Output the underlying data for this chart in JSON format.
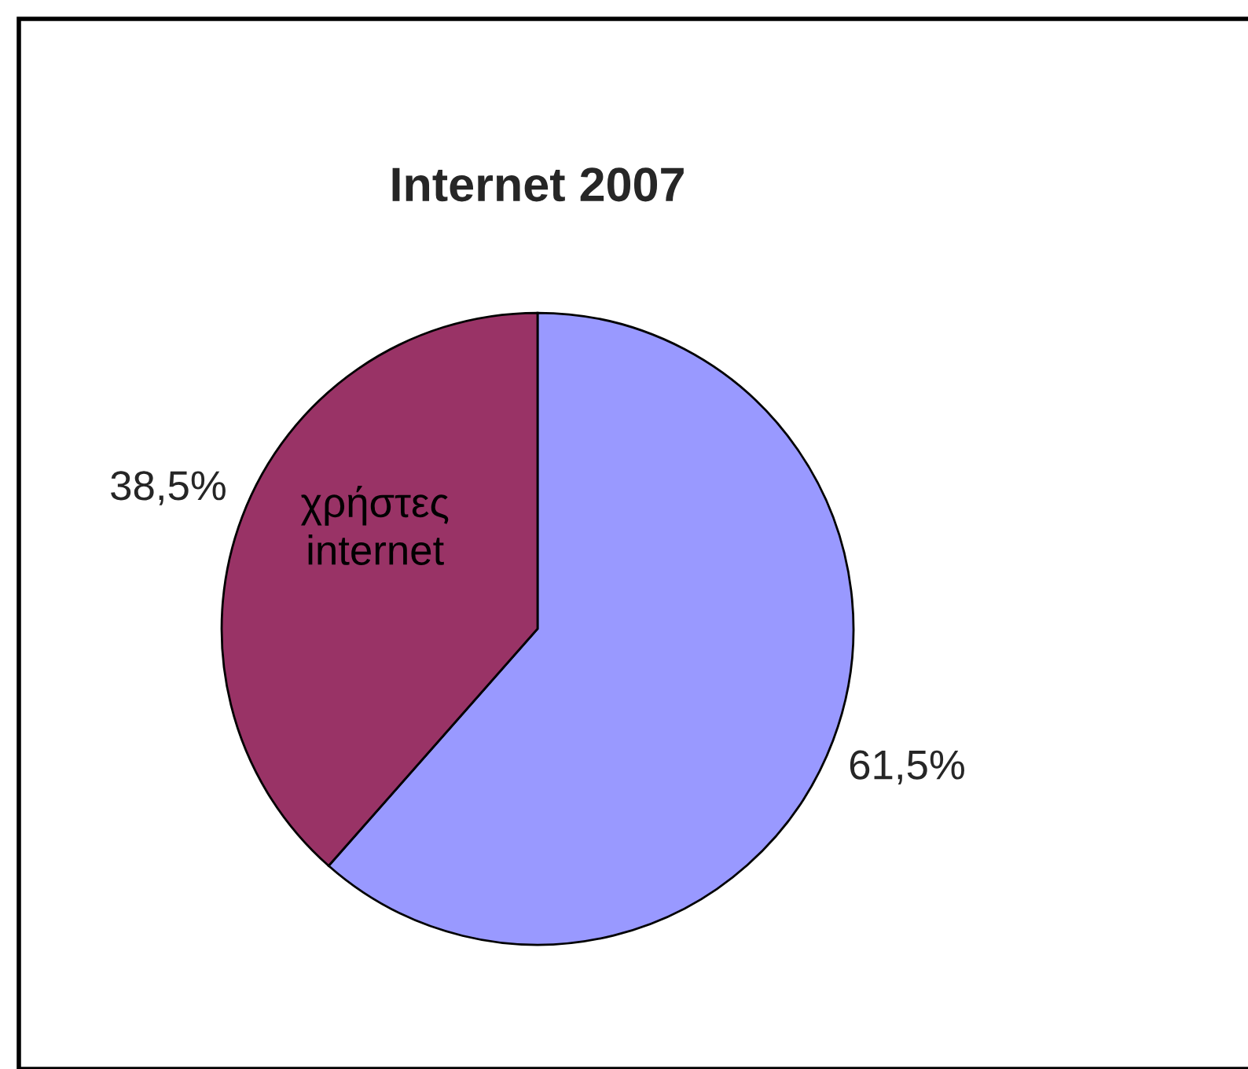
{
  "chart_data": {
    "type": "pie",
    "title": "Internet 2007",
    "categories": [
      null,
      "χρήστες\ninternet"
    ],
    "values": [
      61.5,
      38.5
    ],
    "colors": [
      "#9999ff",
      "#993366"
    ],
    "value_labels": [
      "61,5%",
      "38,5%"
    ],
    "legend": false
  }
}
